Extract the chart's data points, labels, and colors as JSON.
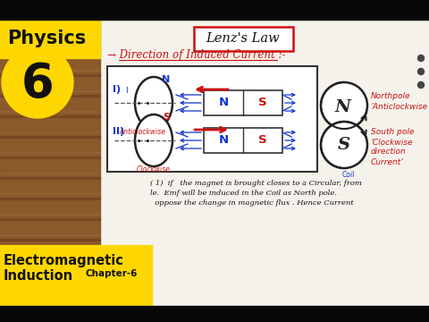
{
  "bg_color": "#111111",
  "wood_color": "#8B5A2B",
  "wood_dark": "#6B3A1A",
  "yellow_color": "#FFD700",
  "white_color": "#F5F2EC",
  "title_text": "Physics",
  "number_text": "6",
  "bottom_line1": "Electromagnetic",
  "bottom_line2": "Induction",
  "bottom_line3": "Chapter-6",
  "lenz_title": "Lenz's Law",
  "direction_text": "→ Direction of Induced Current :-",
  "case1_label": "I)",
  "case1_sub": "I",
  "case2_label": "II)",
  "coil1_letter": "N",
  "coil2_letter": "S",
  "tag1": "Anticlockwise",
  "tag2": "Clockwise",
  "north_label": "Northpole",
  "anti_label": "’Anticlockwise",
  "south_label": "South pole",
  "cw_line1": "’Clockwise",
  "cw_line2": "direction",
  "cw_line3": "Current‘",
  "coil_label": "Coil",
  "bt1": "( 1)  if   the magnet is brought closes to a Circular, from",
  "bt2": "le.  Emf will be induced in the Coil as North pole.",
  "bt3": "  oppose the change in magnetic flux . Hence Current",
  "dots_color": "#444444",
  "red": "#cc1111",
  "blue": "#1133cc",
  "black": "#111111"
}
